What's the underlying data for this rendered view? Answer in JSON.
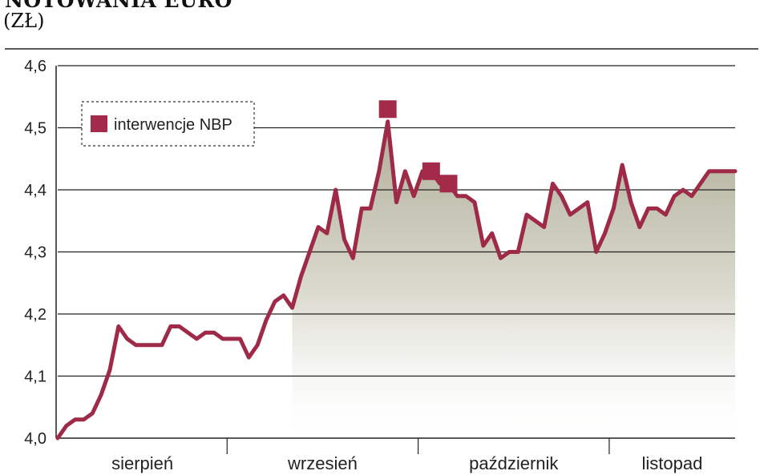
{
  "header": {
    "title": "NOTOWANIA EURO",
    "unit": "(ZŁ)"
  },
  "colors": {
    "line": "#9e2a48",
    "marker": "#a42a4a",
    "area_top": "#b8b5a2",
    "grid": "#222222"
  },
  "chart_data": {
    "type": "line",
    "title": "NOTOWANIA EURO",
    "ylabel": "(ZŁ)",
    "xlabel": "",
    "ylim": [
      4.0,
      4.6
    ],
    "yticks": [
      4.0,
      4.1,
      4.2,
      4.3,
      4.4,
      4.5,
      4.6
    ],
    "ytick_labels": [
      "4,0",
      "4,1",
      "4,2",
      "4,3",
      "4,4",
      "4,5",
      "4,6"
    ],
    "grid": true,
    "legend": {
      "position": "top-left",
      "entries": [
        "interwencje NBP"
      ]
    },
    "months": [
      "sierpień",
      "wrzesień",
      "październik",
      "listopad"
    ],
    "x": [
      0,
      1,
      2,
      3,
      4,
      5,
      6,
      7,
      8,
      9,
      10,
      11,
      12,
      13,
      14,
      15,
      16,
      17,
      18,
      19,
      20,
      21,
      22,
      23,
      24,
      25,
      26,
      27,
      28,
      29,
      30,
      31,
      32,
      33,
      34,
      35,
      36,
      37,
      38,
      39,
      40,
      41,
      42,
      43,
      44,
      45,
      46,
      47,
      48,
      49,
      50,
      51,
      52,
      53,
      54,
      55,
      56,
      57,
      58,
      59,
      60,
      61,
      62,
      63,
      64,
      65,
      66,
      67,
      68,
      69,
      70,
      71,
      72,
      73,
      74,
      75,
      76,
      77,
      78
    ],
    "series": [
      {
        "values": [
          4.0,
          4.02,
          4.03,
          4.03,
          4.04,
          4.07,
          4.11,
          4.18,
          4.16,
          4.15,
          4.15,
          4.15,
          4.15,
          4.18,
          4.18,
          4.17,
          4.16,
          4.17,
          4.17,
          4.16,
          4.16,
          4.16,
          4.13,
          4.15,
          4.19,
          4.22,
          4.23,
          4.21,
          4.26,
          4.3,
          4.34,
          4.33,
          4.4,
          4.32,
          4.29,
          4.37,
          4.37,
          4.43,
          4.51,
          4.38,
          4.43,
          4.39,
          4.43,
          4.43,
          4.41,
          4.41,
          4.39,
          4.39,
          4.38,
          4.31,
          4.33,
          4.29,
          4.3,
          4.3,
          4.36,
          4.35,
          4.34,
          4.41,
          4.39,
          4.36,
          4.37,
          4.38,
          4.3,
          4.33,
          4.37,
          4.44,
          4.38,
          4.34,
          4.37,
          4.37,
          4.36,
          4.39,
          4.4,
          4.39,
          4.41,
          4.43,
          4.43,
          4.43,
          4.43
        ]
      }
    ],
    "interventions": [
      {
        "x": 38,
        "y": 4.53
      },
      {
        "x": 43,
        "y": 4.43
      },
      {
        "x": 45,
        "y": 4.41
      }
    ]
  }
}
